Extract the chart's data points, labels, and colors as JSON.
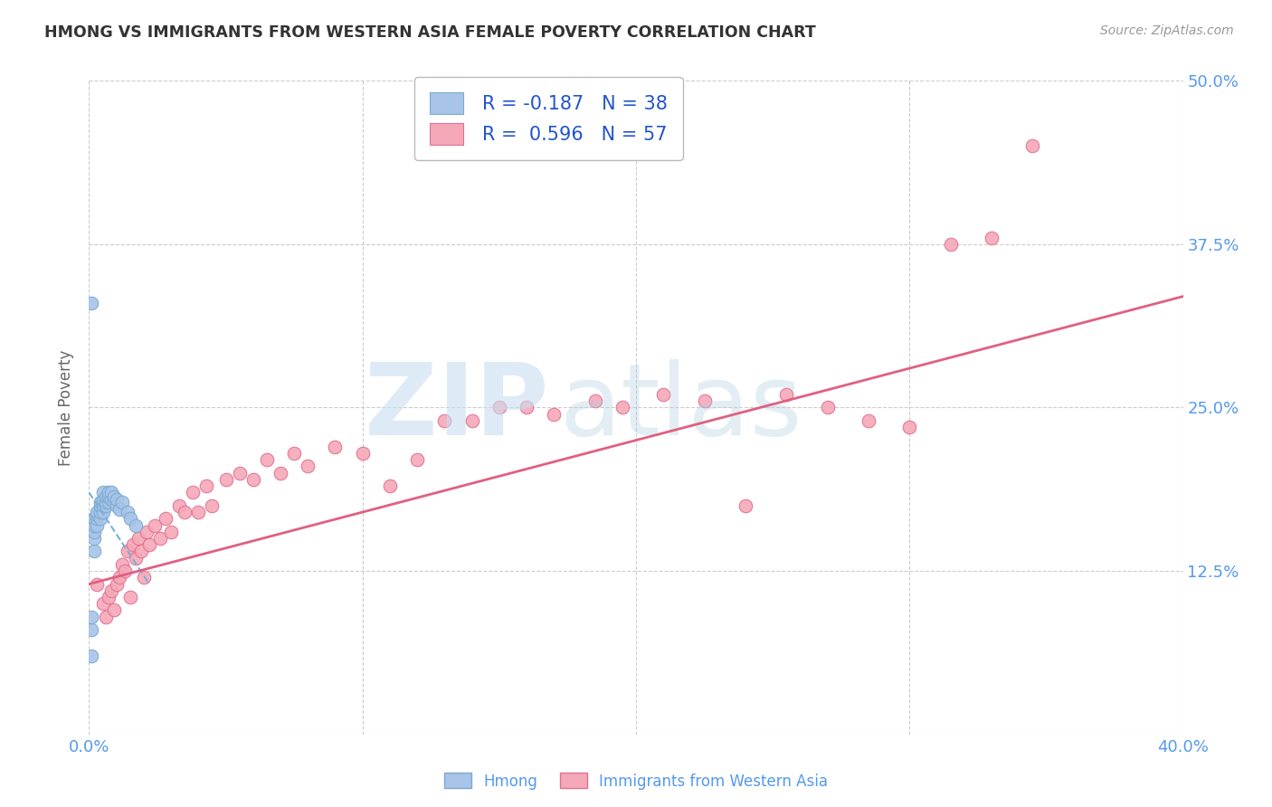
{
  "title": "HMONG VS IMMIGRANTS FROM WESTERN ASIA FEMALE POVERTY CORRELATION CHART",
  "source": "Source: ZipAtlas.com",
  "ylabel": "Female Poverty",
  "xlim": [
    0.0,
    0.4
  ],
  "ylim": [
    0.0,
    0.5
  ],
  "grid_color": "#cccccc",
  "background_color": "#ffffff",
  "hmong_color": "#a8c4e8",
  "hmong_edge_color": "#7aaad0",
  "western_asia_color": "#f5a8b8",
  "western_asia_edge_color": "#e07090",
  "hmong_R": -0.187,
  "hmong_N": 38,
  "western_asia_R": 0.596,
  "western_asia_N": 57,
  "legend_label1": "Hmong",
  "legend_label2": "Immigrants from Western Asia",
  "hmong_x": [
    0.001,
    0.001,
    0.001,
    0.002,
    0.002,
    0.002,
    0.002,
    0.002,
    0.003,
    0.003,
    0.003,
    0.003,
    0.004,
    0.004,
    0.004,
    0.004,
    0.005,
    0.005,
    0.005,
    0.005,
    0.006,
    0.006,
    0.006,
    0.007,
    0.007,
    0.007,
    0.008,
    0.008,
    0.009,
    0.009,
    0.01,
    0.01,
    0.011,
    0.012,
    0.014,
    0.015,
    0.017,
    0.001
  ],
  "hmong_y": [
    0.06,
    0.08,
    0.09,
    0.14,
    0.15,
    0.155,
    0.16,
    0.165,
    0.16,
    0.165,
    0.168,
    0.17,
    0.165,
    0.17,
    0.175,
    0.178,
    0.17,
    0.175,
    0.18,
    0.185,
    0.175,
    0.178,
    0.182,
    0.178,
    0.182,
    0.185,
    0.18,
    0.185,
    0.178,
    0.182,
    0.175,
    0.18,
    0.172,
    0.178,
    0.17,
    0.165,
    0.16,
    0.33
  ],
  "western_asia_x": [
    0.003,
    0.005,
    0.006,
    0.007,
    0.008,
    0.009,
    0.01,
    0.011,
    0.012,
    0.013,
    0.014,
    0.015,
    0.016,
    0.017,
    0.018,
    0.019,
    0.02,
    0.021,
    0.022,
    0.024,
    0.026,
    0.028,
    0.03,
    0.033,
    0.035,
    0.038,
    0.04,
    0.043,
    0.045,
    0.05,
    0.055,
    0.06,
    0.065,
    0.07,
    0.075,
    0.08,
    0.09,
    0.1,
    0.11,
    0.12,
    0.13,
    0.14,
    0.15,
    0.16,
    0.17,
    0.185,
    0.195,
    0.21,
    0.225,
    0.24,
    0.255,
    0.27,
    0.285,
    0.3,
    0.315,
    0.33,
    0.345
  ],
  "western_asia_y": [
    0.115,
    0.1,
    0.09,
    0.105,
    0.11,
    0.095,
    0.115,
    0.12,
    0.13,
    0.125,
    0.14,
    0.105,
    0.145,
    0.135,
    0.15,
    0.14,
    0.12,
    0.155,
    0.145,
    0.16,
    0.15,
    0.165,
    0.155,
    0.175,
    0.17,
    0.185,
    0.17,
    0.19,
    0.175,
    0.195,
    0.2,
    0.195,
    0.21,
    0.2,
    0.215,
    0.205,
    0.22,
    0.215,
    0.19,
    0.21,
    0.24,
    0.24,
    0.25,
    0.25,
    0.245,
    0.255,
    0.25,
    0.26,
    0.255,
    0.175,
    0.26,
    0.25,
    0.24,
    0.235,
    0.375,
    0.38,
    0.45
  ],
  "hmong_trendline_x": [
    0.0,
    0.022
  ],
  "hmong_trendline_y_start": 0.185,
  "hmong_trendline_y_end": 0.115,
  "wa_trendline_x": [
    0.0,
    0.4
  ],
  "wa_trendline_y_start": 0.115,
  "wa_trendline_y_end": 0.335
}
